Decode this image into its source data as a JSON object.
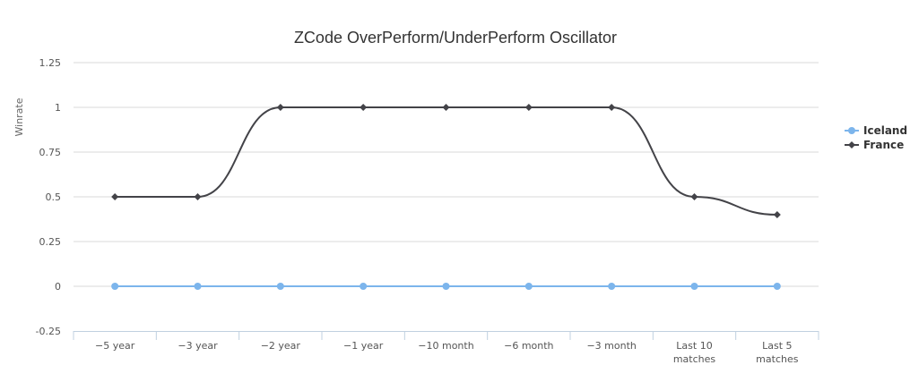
{
  "chart_data": {
    "type": "line",
    "title": "ZCode OverPerform/UnderPerform Oscillator",
    "xlabel": "",
    "ylabel": "Winrate",
    "categories": [
      "-5 year",
      "-3 year",
      "-2 year",
      "-1 year",
      "-10 month",
      "-6 month",
      "-3 month",
      "Last 10 matches",
      "Last 5 matches"
    ],
    "ylim": [
      -0.25,
      1.25
    ],
    "yticks": [
      -0.25,
      0,
      0.25,
      0.5,
      0.75,
      1,
      1.25
    ],
    "ytick_labels": [
      "-0.25",
      "0",
      "0.25",
      "0.5",
      "0.75",
      "1",
      "1.25"
    ],
    "grid": true,
    "legend_position": "right",
    "series": [
      {
        "name": "Iceland",
        "color": "#7cb5ec",
        "marker": "circle",
        "values": [
          0,
          0,
          0,
          0,
          0,
          0,
          0,
          0,
          0
        ]
      },
      {
        "name": "France",
        "color": "#434348",
        "marker": "diamond",
        "values": [
          0.5,
          0.5,
          1,
          1,
          1,
          1,
          1,
          0.5,
          0.4
        ]
      }
    ]
  }
}
